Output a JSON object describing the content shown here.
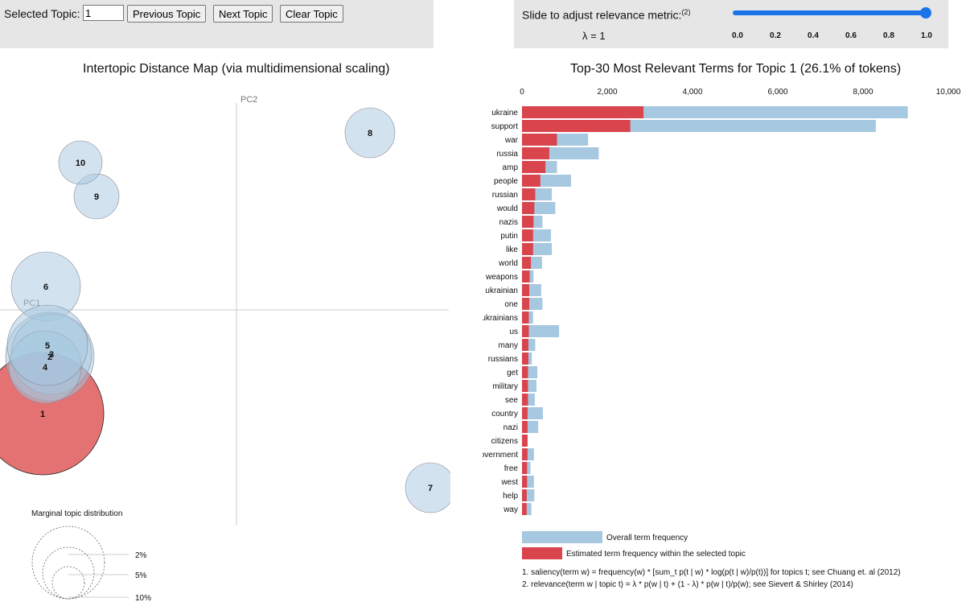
{
  "controls": {
    "selected_topic_label": "Selected Topic:",
    "selected_topic_value": "1",
    "prev_label": "Previous Topic",
    "next_label": "Next Topic",
    "clear_label": "Clear Topic"
  },
  "slider": {
    "title": "Slide to adjust relevance metric:",
    "footnote_ref": "(2)",
    "lambda_text": "λ = 1",
    "value": 1.0,
    "ticks": [
      "0.0",
      "0.2",
      "0.4",
      "0.6",
      "0.8",
      "1.0"
    ],
    "accent": "#1a73e8"
  },
  "map": {
    "title": "Intertopic Distance Map (via multidimensional scaling)",
    "pc1_label": "PC1",
    "pc2_label": "PC2",
    "topics": [
      {
        "id": "1",
        "selected": true
      },
      {
        "id": "2"
      },
      {
        "id": "3"
      },
      {
        "id": "4"
      },
      {
        "id": "5"
      },
      {
        "id": "6"
      },
      {
        "id": "7"
      },
      {
        "id": "8"
      },
      {
        "id": "9"
      },
      {
        "id": "10"
      }
    ],
    "legend": {
      "title": "Marginal topic distribution",
      "levels": [
        "2%",
        "5%",
        "10%"
      ]
    },
    "colors": {
      "default": "#a6c8e0",
      "selected": "#d62728"
    }
  },
  "bars": {
    "title": "Top-30 Most Relevant Terms for Topic 1 (26.1% of tokens)",
    "legend_overall": "Overall term frequency",
    "legend_topic": "Estimated term frequency within the selected topic",
    "footnote1": "1. saliency(term w) = frequency(w) * [sum_t p(t | w) * log(p(t | w)/p(t))] for topics t; see Chuang et. al (2012)",
    "footnote2": "2. relevance(term w | topic t) = λ * p(w | t) + (1 - λ) * p(w | t)/p(w); see Sievert & Shirley (2014)",
    "colors": {
      "overall": "#a6c8e0",
      "topic": "#d9444d"
    }
  },
  "chart_data": {
    "type": "bar",
    "orientation": "horizontal",
    "title": "Top-30 Most Relevant Terms for Topic 1 (26.1% of tokens)",
    "xlim": [
      0,
      10000
    ],
    "xticks": [
      "0",
      "2,000",
      "4,000",
      "6,000",
      "8,000",
      "10,000"
    ],
    "categories": [
      "ukraine",
      "support",
      "war",
      "russia",
      "amp",
      "people",
      "russian",
      "would",
      "nazis",
      "putin",
      "like",
      "world",
      "weapons",
      "ukrainian",
      "one",
      "ukrainians",
      "us",
      "many",
      "russians",
      "get",
      "military",
      "see",
      "country",
      "nazi",
      "citizens",
      "government",
      "free",
      "west",
      "help",
      "way"
    ],
    "series": [
      {
        "name": "Overall term frequency",
        "values": [
          9050,
          8300,
          1550,
          1800,
          820,
          1150,
          700,
          780,
          480,
          680,
          700,
          470,
          270,
          450,
          480,
          260,
          870,
          310,
          230,
          360,
          340,
          300,
          490,
          380,
          130,
          280,
          200,
          280,
          290,
          220
        ]
      },
      {
        "name": "Estimated term frequency within the selected topic",
        "values": [
          2850,
          2540,
          820,
          640,
          550,
          430,
          310,
          290,
          270,
          260,
          260,
          210,
          180,
          170,
          170,
          160,
          160,
          150,
          150,
          140,
          140,
          140,
          130,
          130,
          130,
          130,
          120,
          120,
          110,
          110
        ]
      }
    ]
  }
}
